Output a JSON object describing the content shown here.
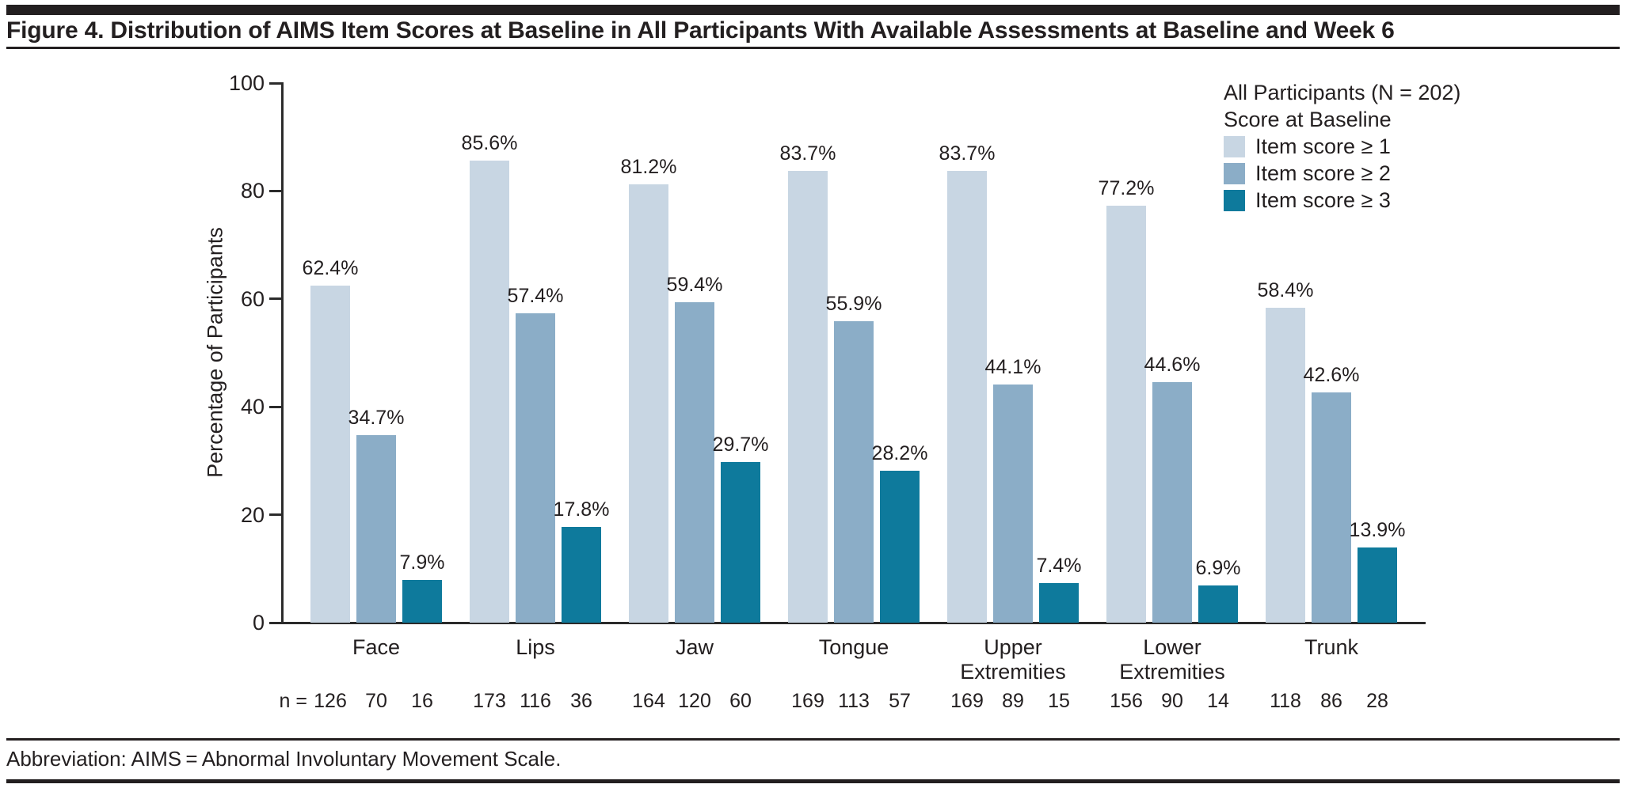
{
  "figure": {
    "title": "Figure 4. Distribution of AIMS Item Scores at Baseline in All Participants With Available Assessments at Baseline and Week 6"
  },
  "footer": {
    "abbreviation": "Abbreviation: AIMS = Abnormal Involuntary Movement Scale."
  },
  "chart_data": {
    "type": "bar",
    "title": "",
    "xlabel": "",
    "ylabel": "Percentage of Participants",
    "ylim": [
      0,
      100
    ],
    "yticks": [
      0,
      20,
      40,
      60,
      80,
      100
    ],
    "grid": false,
    "legend_position": "top-right",
    "legend": {
      "title_line1": "All Participants (N = 202)",
      "title_line2": "Score at Baseline"
    },
    "categories": [
      "Face",
      "Lips",
      "Jaw",
      "Tongue",
      "Upper\nExtremities",
      "Lower\nExtremities",
      "Trunk"
    ],
    "series": [
      {
        "name": "Item score ≥ 1",
        "color": "#c8d6e3",
        "values": [
          62.4,
          85.6,
          81.2,
          83.7,
          83.7,
          77.2,
          58.4
        ]
      },
      {
        "name": "Item score ≥ 2",
        "color": "#8badc7",
        "values": [
          34.7,
          57.4,
          59.4,
          55.9,
          44.1,
          44.6,
          42.6
        ]
      },
      {
        "name": "Item score ≥ 3",
        "color": "#0e7a9c",
        "values": [
          7.9,
          17.8,
          29.7,
          28.2,
          7.4,
          6.9,
          13.9
        ]
      }
    ],
    "value_label_suffix": "%",
    "n_row": {
      "label": "n =",
      "values": [
        [
          126,
          70,
          16
        ],
        [
          173,
          116,
          36
        ],
        [
          164,
          120,
          60
        ],
        [
          169,
          113,
          57
        ],
        [
          169,
          89,
          15
        ],
        [
          156,
          90,
          14
        ],
        [
          118,
          86,
          28
        ]
      ]
    }
  }
}
